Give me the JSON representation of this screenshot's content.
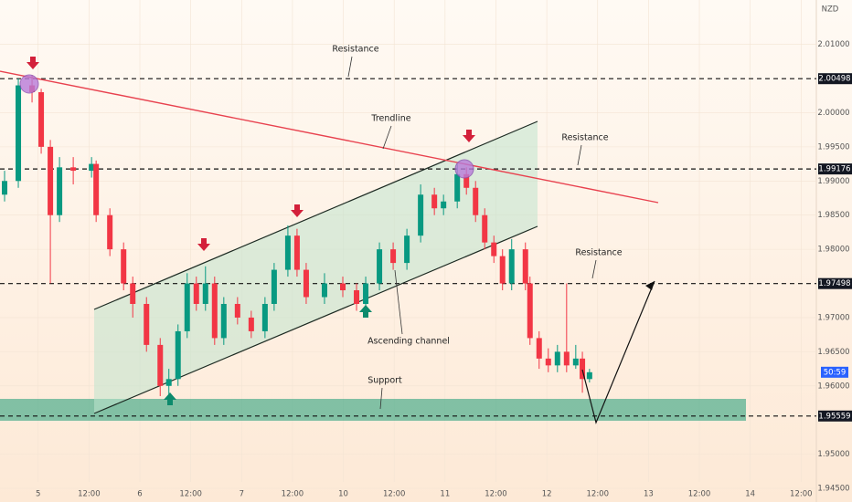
{
  "chart_data": {
    "type": "candlestick",
    "currency": "NZD",
    "countdown": "50:59",
    "annotations": [
      "Resistance",
      "Trendline",
      "Resistance",
      "Resistance",
      "Ascending channel",
      "Support"
    ],
    "up_color": "#089981",
    "down_color": "#f23645",
    "xlim": [
      -0.75,
      15.3
    ],
    "ylim": [
      1.943,
      2.0165
    ],
    "xticks": [
      {
        "value": 0,
        "label": "5"
      },
      {
        "value": 1,
        "label": "12:00"
      },
      {
        "value": 2,
        "label": "6"
      },
      {
        "value": 3,
        "label": "12:00"
      },
      {
        "value": 4,
        "label": "7"
      },
      {
        "value": 5,
        "label": "12:00"
      },
      {
        "value": 6,
        "label": "10"
      },
      {
        "value": 7,
        "label": "12:00"
      },
      {
        "value": 8,
        "label": "11"
      },
      {
        "value": 9,
        "label": "12:00"
      },
      {
        "value": 10,
        "label": "12"
      },
      {
        "value": 11,
        "label": "12:00"
      },
      {
        "value": 12,
        "label": "13"
      },
      {
        "value": 13,
        "label": "12:00"
      },
      {
        "value": 14,
        "label": "14"
      },
      {
        "value": 15,
        "label": "12:00"
      }
    ],
    "yticks": [
      {
        "value": 2.01,
        "label": "2.01000"
      },
      {
        "value": 2.0,
        "label": "2.00000"
      },
      {
        "value": 1.995,
        "label": "1.99500"
      },
      {
        "value": 1.99,
        "label": "1.99000"
      },
      {
        "value": 1.985,
        "label": "1.98500"
      },
      {
        "value": 1.98,
        "label": "1.98000"
      },
      {
        "value": 1.97,
        "label": "1.97000"
      },
      {
        "value": 1.965,
        "label": "1.96500"
      },
      {
        "value": 1.96,
        "label": "1.96000"
      },
      {
        "value": 1.95,
        "label": "1.95000"
      },
      {
        "value": 1.945,
        "label": "1.94500"
      }
    ],
    "levels": [
      2.00498,
      1.99176,
      1.97498,
      1.95559
    ],
    "x": [
      -0.66,
      -0.39,
      -0.12,
      0.06,
      0.24,
      0.42,
      0.69,
      1.05,
      1.14,
      1.41,
      1.68,
      1.86,
      2.13,
      2.4,
      2.57,
      2.75,
      2.93,
      3.11,
      3.29,
      3.47,
      3.65,
      3.92,
      4.19,
      4.46,
      4.64,
      4.91,
      5.09,
      5.27,
      5.63,
      5.99,
      6.26,
      6.44,
      6.71,
      6.98,
      7.25,
      7.52,
      7.79,
      7.97,
      8.24,
      8.42,
      8.6,
      8.78,
      8.96,
      9.13,
      9.31,
      9.58,
      9.67,
      9.85,
      10.03,
      10.21,
      10.39,
      10.57,
      10.7,
      10.84
    ],
    "open": [
      1.988,
      1.99,
      2.004,
      2.003,
      1.995,
      1.985,
      1.992,
      1.9915,
      1.9925,
      1.985,
      1.98,
      1.975,
      1.972,
      1.966,
      1.96,
      1.961,
      1.968,
      1.975,
      1.972,
      1.975,
      1.967,
      1.972,
      1.97,
      1.968,
      1.972,
      1.977,
      1.982,
      1.977,
      1.973,
      1.975,
      1.974,
      1.972,
      1.975,
      1.98,
      1.978,
      1.982,
      1.988,
      1.986,
      1.987,
      1.991,
      1.989,
      1.985,
      1.981,
      1.979,
      1.975,
      1.98,
      1.975,
      1.967,
      1.964,
      1.963,
      1.965,
      1.963,
      1.964,
      1.961
    ],
    "high": [
      1.9915,
      2.005,
      2.0055,
      2.0035,
      1.996,
      1.9935,
      1.9935,
      1.9935,
      1.993,
      1.986,
      1.981,
      1.976,
      1.973,
      1.967,
      1.9625,
      1.969,
      1.9765,
      1.976,
      1.9775,
      1.976,
      1.973,
      1.973,
      1.971,
      1.973,
      1.978,
      1.9835,
      1.983,
      1.978,
      1.9765,
      1.976,
      1.975,
      1.976,
      1.981,
      1.981,
      1.983,
      1.9895,
      1.989,
      1.988,
      1.9925,
      1.992,
      1.99,
      1.986,
      1.982,
      1.98,
      1.9815,
      1.981,
      1.976,
      1.968,
      1.9655,
      1.966,
      1.975,
      1.966,
      1.965,
      1.9625
    ],
    "low": [
      1.987,
      1.989,
      2.0015,
      1.994,
      1.975,
      1.984,
      1.9895,
      1.9905,
      1.984,
      1.979,
      1.974,
      1.97,
      1.965,
      1.9585,
      1.958,
      1.96,
      1.967,
      1.971,
      1.971,
      1.966,
      1.966,
      1.969,
      1.967,
      1.967,
      1.971,
      1.976,
      1.976,
      1.972,
      1.972,
      1.973,
      1.971,
      1.971,
      1.974,
      1.977,
      1.977,
      1.981,
      1.985,
      1.985,
      1.986,
      1.988,
      1.984,
      1.98,
      1.978,
      1.974,
      1.974,
      1.974,
      1.966,
      1.9625,
      1.962,
      1.962,
      1.962,
      1.9625,
      1.959,
      1.9605
    ],
    "close": [
      1.99,
      2.004,
      2.003,
      1.995,
      1.985,
      1.992,
      1.9915,
      1.9925,
      1.985,
      1.98,
      1.975,
      1.972,
      1.966,
      1.96,
      1.961,
      1.968,
      1.975,
      1.972,
      1.975,
      1.967,
      1.972,
      1.97,
      1.968,
      1.972,
      1.977,
      1.982,
      1.977,
      1.973,
      1.975,
      1.974,
      1.972,
      1.975,
      1.98,
      1.978,
      1.982,
      1.988,
      1.986,
      1.987,
      1.991,
      1.989,
      1.985,
      1.981,
      1.979,
      1.975,
      1.98,
      1.975,
      1.967,
      1.964,
      1.963,
      1.965,
      1.963,
      1.964,
      1.961,
      1.962
    ]
  }
}
